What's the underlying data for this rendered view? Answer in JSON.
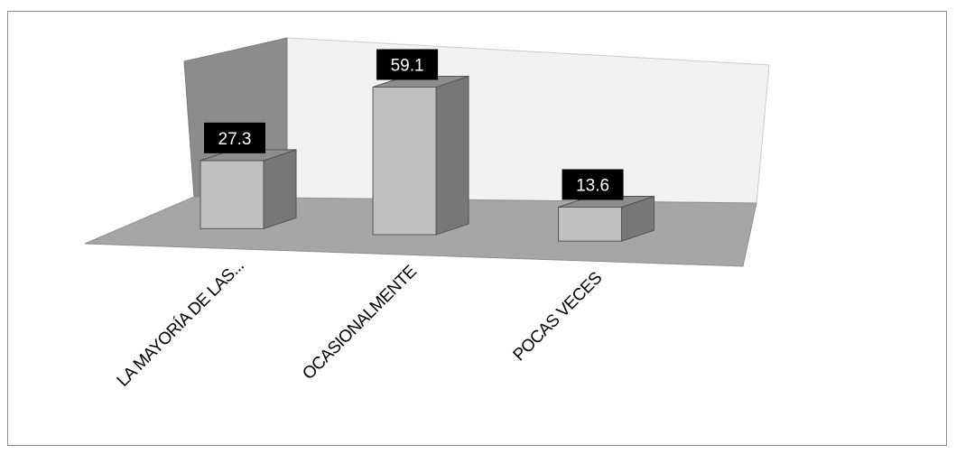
{
  "chart_data": {
    "type": "bar",
    "subtype": "3d-column",
    "categories": [
      "LA MAYORÍA DE LAS...",
      "OCASIONALMENTE",
      "POCAS VECES"
    ],
    "values": [
      27.3,
      59.1,
      13.6
    ],
    "data_labels": [
      "27.3",
      "59.1",
      "13.6"
    ],
    "title": "",
    "xlabel": "",
    "ylabel": "",
    "ylim": [
      0,
      60
    ],
    "grid": false,
    "legend": "none",
    "colors": {
      "bar_front": "#c0c0c0",
      "bar_top": "#8d8d8d",
      "bar_side": "#777777",
      "floor": "#a6a6a6",
      "back_wall": "#f2f2f2",
      "side_wall": "#8c8c8c",
      "label_box": "#000000",
      "label_text": "#ffffff"
    }
  }
}
